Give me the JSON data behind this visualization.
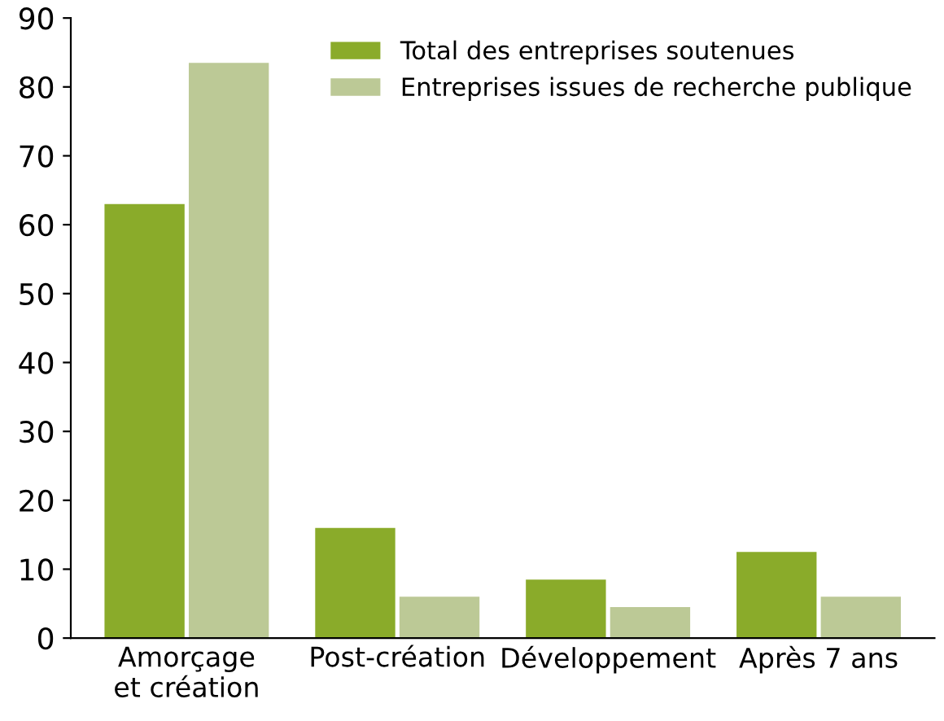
{
  "chart_data": {
    "type": "bar",
    "categories": [
      "Amorçage\net création",
      "Post-création",
      "Développement",
      "Après 7 ans"
    ],
    "series": [
      {
        "name": "Total des entreprises soutenues",
        "color": "#8aab2a",
        "values": [
          63,
          16,
          8.5,
          12.5
        ]
      },
      {
        "name": "Entreprises issues de recherche publique",
        "color": "#bcc996",
        "values": [
          83.5,
          6,
          4.5,
          6
        ]
      }
    ],
    "ylim": [
      0,
      90
    ],
    "yticks": [
      0,
      10,
      20,
      30,
      40,
      50,
      60,
      70,
      80,
      90
    ],
    "grid": false,
    "legend": "top right"
  }
}
